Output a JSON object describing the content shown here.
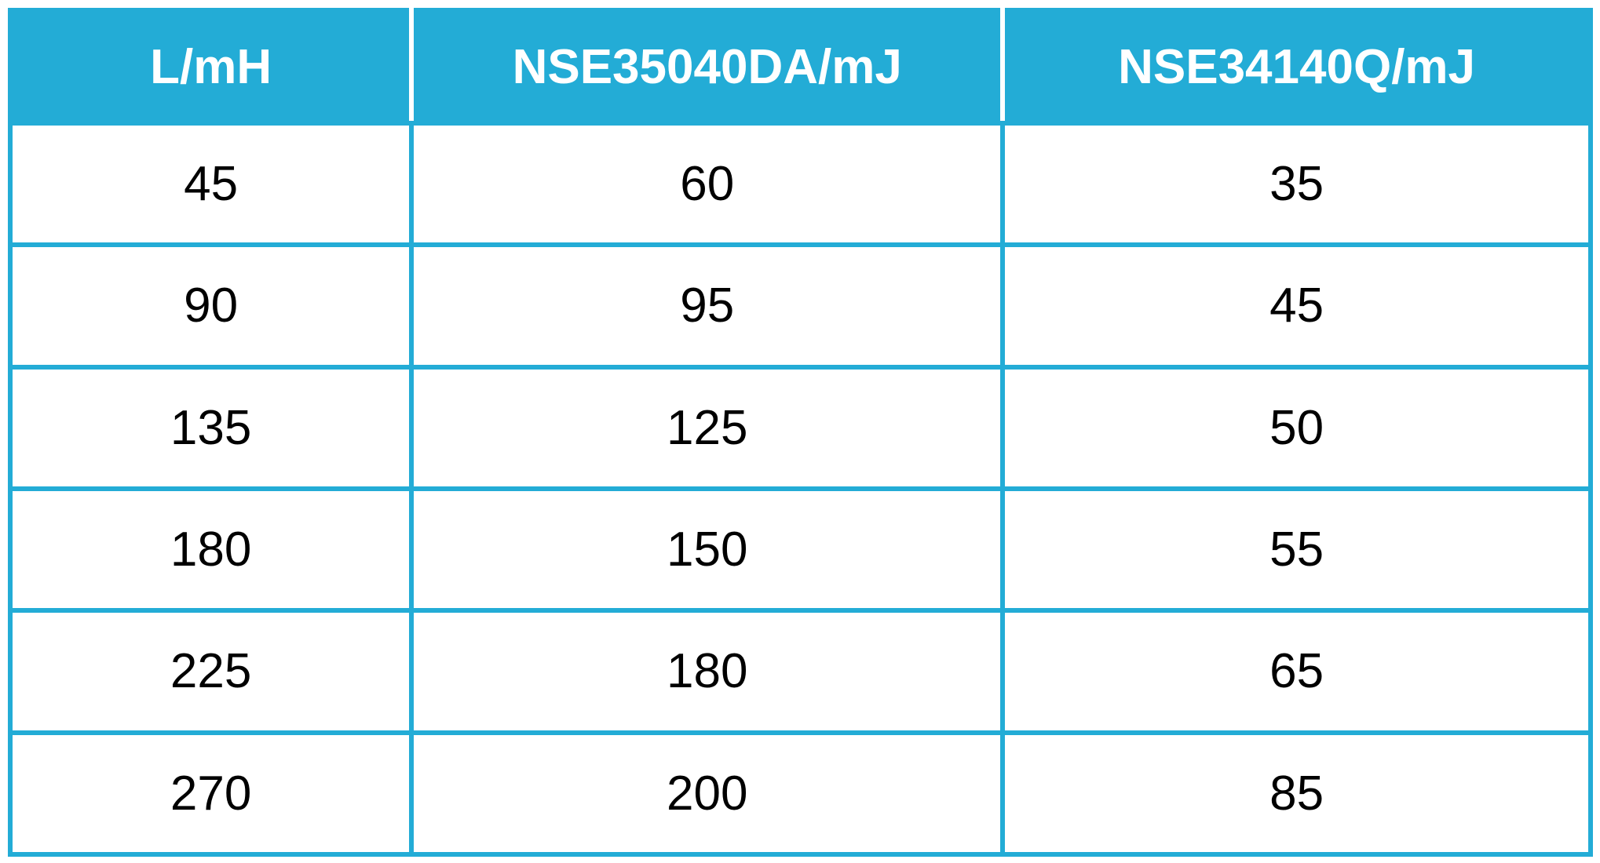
{
  "table": {
    "columns": [
      "L/mH",
      "NSE35040DA/mJ",
      "NSE34140Q/mJ"
    ],
    "rows": [
      [
        "45",
        "60",
        "35"
      ],
      [
        "90",
        "95",
        "45"
      ],
      [
        "135",
        "125",
        "50"
      ],
      [
        "180",
        "150",
        "55"
      ],
      [
        "225",
        "180",
        "65"
      ],
      [
        "270",
        "200",
        "85"
      ]
    ]
  },
  "chart_data": {
    "type": "table",
    "columns": [
      "L/mH",
      "NSE35040DA/mJ",
      "NSE34140Q/mJ"
    ],
    "categories": [
      45,
      90,
      135,
      180,
      225,
      270
    ],
    "series": [
      {
        "name": "NSE35040DA/mJ",
        "values": [
          60,
          95,
          125,
          150,
          180,
          200
        ]
      },
      {
        "name": "NSE34140Q/mJ",
        "values": [
          35,
          45,
          50,
          55,
          65,
          85
        ]
      }
    ],
    "xlabel": "L/mH",
    "title": ""
  },
  "colors": {
    "accent": "#23acd6",
    "header_text": "#ffffff",
    "cell_text": "#000000",
    "page_background": "#ffffff"
  }
}
